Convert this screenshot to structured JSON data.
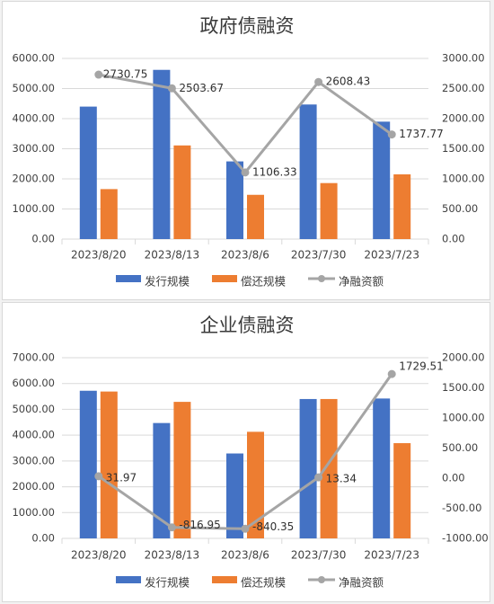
{
  "colors": {
    "issue": "#4472C4",
    "repay": "#ED7D31",
    "net": "#A5A5A5",
    "grid": "#D9D9D9",
    "panel_bg": "#FFFFFF",
    "page_bg": "#F2F2F2"
  },
  "chart_data": [
    {
      "type": "bar",
      "title": "政府债融资",
      "categories": [
        "2023/8/20",
        "2023/8/13",
        "2023/8/6",
        "2023/7/30",
        "2023/7/23"
      ],
      "series": [
        {
          "name": "发行规模",
          "kind": "bar",
          "axis": "left",
          "values": [
            4400,
            5620,
            2580,
            4470,
            3900
          ]
        },
        {
          "name": "偿还规模",
          "kind": "bar",
          "axis": "left",
          "values": [
            1660,
            3110,
            1470,
            1860,
            2150
          ]
        },
        {
          "name": "净融资额",
          "kind": "line",
          "axis": "right",
          "values": [
            2730.75,
            2503.67,
            1106.33,
            2608.43,
            1737.77
          ],
          "labels": [
            "2730.75",
            "2503.67",
            "1106.33",
            "2608.43",
            "1737.77"
          ]
        }
      ],
      "y_left": {
        "min": 0,
        "max": 6000,
        "step": 1000,
        "ticks": [
          "0.00",
          "1000.00",
          "2000.00",
          "3000.00",
          "4000.00",
          "5000.00",
          "6000.00"
        ]
      },
      "y_right": {
        "min": 0,
        "max": 3000,
        "step": 500,
        "ticks": [
          "0.00",
          "500.00",
          "1000.00",
          "1500.00",
          "2000.00",
          "2500.00",
          "3000.00"
        ]
      },
      "grid": true,
      "legend_position": "bottom"
    },
    {
      "type": "bar",
      "title": "企业债融资",
      "categories": [
        "2023/8/20",
        "2023/8/13",
        "2023/8/6",
        "2023/7/30",
        "2023/7/23"
      ],
      "series": [
        {
          "name": "发行规模",
          "kind": "bar",
          "axis": "left",
          "values": [
            5720,
            4470,
            3290,
            5400,
            5420
          ]
        },
        {
          "name": "偿还规模",
          "kind": "bar",
          "axis": "left",
          "values": [
            5690,
            5290,
            4130,
            5400,
            3690
          ]
        },
        {
          "name": "净融资额",
          "kind": "line",
          "axis": "right",
          "values": [
            31.97,
            -816.95,
            -840.35,
            13.34,
            1729.51
          ],
          "labels": [
            "31.97",
            "-816.95",
            "-840.35",
            "13.34",
            "1729.51"
          ]
        }
      ],
      "y_left": {
        "min": 0,
        "max": 7000,
        "step": 1000,
        "ticks": [
          "0.00",
          "1000.00",
          "2000.00",
          "3000.00",
          "4000.00",
          "5000.00",
          "6000.00",
          "7000.00"
        ]
      },
      "y_right": {
        "min": -1000,
        "max": 2000,
        "step": 500,
        "ticks": [
          "-1000.00",
          "-500.00",
          "0.00",
          "500.00",
          "1000.00",
          "1500.00",
          "2000.00"
        ]
      },
      "grid": true,
      "legend_position": "bottom"
    }
  ]
}
